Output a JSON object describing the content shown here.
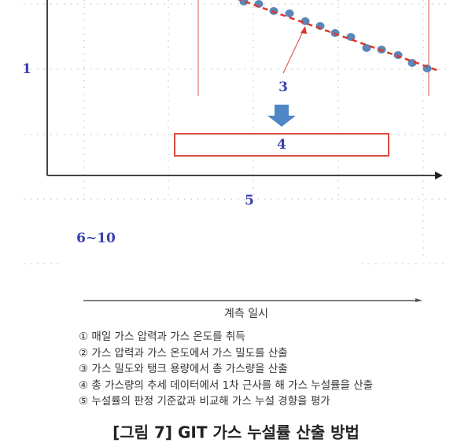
{
  "diagram": {
    "labels": {
      "y_axis": "1",
      "trend_point": "3",
      "approx_box": "4",
      "x_axis": "5",
      "range": "6~10"
    },
    "x_axis_title": "계측 일시",
    "steps": [
      "① 매일 가스 압력과 가스 온도를 취득",
      "② 가스 압력과 가스 온도에서 가스 밀도를 산출",
      "③ 가스 밀도와 탱크 용량에서 총 가스량을 산출",
      "④ 총 가스량의 추세 데이터에서 1차 근사를 해 가스 누설률을 산출",
      "⑤ 누설률의 판정 기준값과 비교해 가스 누설 경향을 평가"
    ],
    "caption": "[그림 7] GIT 가스 누설률 산출 방법",
    "colors": {
      "label": "#3a3fb0",
      "points": "#5b86b8",
      "trend": "#d9382e",
      "arrow": "#4f86c6"
    }
  }
}
